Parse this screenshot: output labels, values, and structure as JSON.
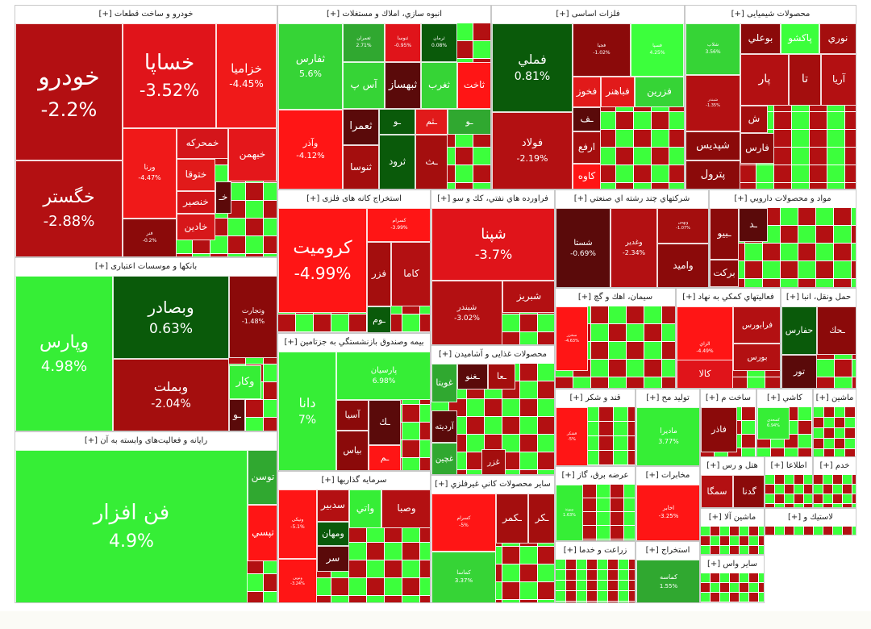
{
  "colors": {
    "strong_up": "#0b8a0b",
    "up": "#36d436",
    "bright_up": "#3cff3c",
    "dark_green": "#0a5a0a",
    "down": "#e00",
    "red": "#ff1515",
    "dark_red": "#a40e0e",
    "deep_red": "#5a0a0a",
    "maroon": "#7e0b0b"
  },
  "chart_data": {
    "type": "treemap",
    "sectors": [
      {
        "id": "auto",
        "title": "خودرو و ساخت قطعات [+]",
        "stocks": [
          {
            "s": "خودرو",
            "p": "-2.2%",
            "c": "#b30f12"
          },
          {
            "s": "خگستر",
            "p": "-2.88%",
            "c": "#b31012"
          },
          {
            "s": "خساپا",
            "p": "-3.52%",
            "c": "#e0141a"
          },
          {
            "s": "خزامیا",
            "p": "-4.45%",
            "c": "#f01919"
          },
          {
            "s": "ورنا",
            "p": "-4.47%",
            "c": "#f01919"
          },
          {
            "s": "خمحرکه",
            "p": "",
            "c": "#d4151a"
          },
          {
            "s": "خبهمن",
            "p": "",
            "c": "#e4171b"
          },
          {
            "s": "ختوقا",
            "p": "",
            "c": "#e11a1a"
          },
          {
            "s": "خنصیر",
            "p": "",
            "c": "#d01317"
          },
          {
            "s": "خادین",
            "p": "",
            "c": "#d7171a"
          },
          {
            "s": "خـ",
            "p": "",
            "c": "#5b0909"
          },
          {
            "s": "فنر",
            "p": "-0.2%",
            "c": "#8b0a0a"
          }
        ]
      },
      {
        "id": "build",
        "title": "انبوه سازي، املاك و مستغلات [+]",
        "stocks": [
          {
            "s": "ثفارس",
            "p": "5.6%",
            "c": "#36d436"
          },
          {
            "s": "ثعمران",
            "p": "2.71%",
            "c": "#30a830"
          },
          {
            "s": "ثنوسا",
            "p": "-0.95%",
            "c": "#e0141a"
          },
          {
            "s": "ثرمان",
            "p": "0.08%",
            "c": "#0a5a0a"
          },
          {
            "s": "وآذر",
            "p": "-4.12%",
            "c": "#ff1515"
          },
          {
            "s": "آس پ",
            "p": "",
            "c": "#36d436"
          },
          {
            "s": "ثبهساز",
            "p": "",
            "c": "#5a0a0a"
          },
          {
            "s": "ثغرب",
            "p": "",
            "c": "#36d436"
          },
          {
            "s": "ثاخت",
            "p": "",
            "c": "#ff1515"
          },
          {
            "s": "ثعمرا",
            "p": "",
            "c": "#5a0a0a"
          },
          {
            "s": "ـو",
            "p": "",
            "c": "#0a5a0a"
          },
          {
            "s": "ـثم",
            "p": "",
            "c": "#e11a1a"
          },
          {
            "s": "ـو",
            "p": "",
            "c": "#30a830"
          },
          {
            "s": "ثنوسا",
            "p": "",
            "c": "#a40e0e"
          },
          {
            "s": "ثرود",
            "p": "",
            "c": "#0a5a0a"
          },
          {
            "s": "ـث",
            "p": "",
            "c": "#a40e0e"
          }
        ]
      },
      {
        "id": "metal",
        "title": "فلزات اساسی [+]",
        "stocks": [
          {
            "s": "فملي",
            "p": "0.81%",
            "c": "#0a5a0a"
          },
          {
            "s": "فولاد",
            "p": "-2.19%",
            "c": "#b31012"
          },
          {
            "s": "فجبا",
            "p": "-1.02%",
            "c": "#8b0a0a"
          },
          {
            "s": "فسپا",
            "p": "4.25%",
            "c": "#3cff3c"
          },
          {
            "s": "فخوز",
            "p": "",
            "c": "#e11a1a"
          },
          {
            "s": "فباهنر",
            "p": "",
            "c": "#e11a1a"
          },
          {
            "s": "فزرين",
            "p": "",
            "c": "#36d436"
          },
          {
            "s": "ـف",
            "p": "",
            "c": "#5a0a0a"
          },
          {
            "s": "ارفع",
            "p": "",
            "c": "#a40e0e"
          },
          {
            "s": "کاوه",
            "p": "",
            "c": "#ff1515"
          }
        ]
      },
      {
        "id": "chem",
        "title": "محصولات شیمیایی [+]",
        "stocks": [
          {
            "s": "شلاب",
            "p": "3.56%",
            "c": "#36d436"
          },
          {
            "s": "بوعلي",
            "p": "",
            "c": "#8b0a0a"
          },
          {
            "s": "پاكشو",
            "p": "",
            "c": "#3cff3c"
          },
          {
            "s": "نوري",
            "p": "",
            "c": "#a40e0e"
          },
          {
            "s": "پار",
            "p": "",
            "c": "#b31012"
          },
          {
            "s": "تا",
            "p": "",
            "c": "#a40e0e"
          },
          {
            "s": "آريا",
            "p": "",
            "c": "#b31012"
          },
          {
            "s": "شبندر",
            "p": "-1.35%",
            "c": "#b31012"
          },
          {
            "s": "ش",
            "p": "",
            "c": "#a40e0e"
          },
          {
            "s": "شپديس",
            "p": "",
            "c": "#8b0a0a"
          },
          {
            "s": "فارس",
            "p": "",
            "c": "#8b0a0a"
          },
          {
            "s": "پترول",
            "p": "",
            "c": "#8b0a0a"
          }
        ]
      },
      {
        "id": "bank",
        "title": "بانکها و موسسات اعتباری [+]",
        "stocks": [
          {
            "s": "وپارس",
            "p": "4.98%",
            "c": "#36ee36"
          },
          {
            "s": "وبصادر",
            "p": "0.63%",
            "c": "#0a5a0a"
          },
          {
            "s": "وبملت",
            "p": "-2.04%",
            "c": "#a40e0e"
          },
          {
            "s": "وتجارت",
            "p": "-1.48%",
            "c": "#8b0a0a"
          },
          {
            "s": "وكار",
            "p": "",
            "c": "#36ee36"
          },
          {
            "s": "ـو",
            "p": "",
            "c": "#5a0a0a"
          }
        ]
      },
      {
        "id": "it",
        "title": "رایانه و فعالیت‌های وابسته به آن [+]",
        "stocks": [
          {
            "s": "فن افزار",
            "p": "4.9%",
            "c": "#36ee36"
          },
          {
            "s": "توسن",
            "p": "",
            "c": "#30a830"
          },
          {
            "s": "تپسي",
            "p": "",
            "c": "#ff1515"
          }
        ]
      },
      {
        "id": "mine",
        "title": "استخراج کانه های فلزی [+]",
        "stocks": [
          {
            "s": "کرومیت",
            "p": "-4.99%",
            "c": "#ff1515"
          },
          {
            "s": "کسرام",
            "p": "-3.99%",
            "c": "#ff1515"
          },
          {
            "s": "فزر",
            "p": "",
            "c": "#a40e0e"
          },
          {
            "s": "کاما",
            "p": "",
            "c": "#b31012"
          },
          {
            "s": "ـوم",
            "p": "",
            "c": "#0a5a0a"
          }
        ]
      },
      {
        "id": "oil",
        "title": "فراورده هاي نفتي، كك و سو [+]",
        "stocks": [
          {
            "s": "شپنا",
            "p": "-3.7%",
            "c": "#e0141a"
          },
          {
            "s": "شبندر",
            "p": "-3.02%",
            "c": "#b31012"
          },
          {
            "s": "شبريز",
            "p": "",
            "c": "#b31012"
          }
        ]
      },
      {
        "id": "multi",
        "title": "شرکتهاي چند رشته اي صنعتي [+]",
        "stocks": [
          {
            "s": "شستا",
            "p": "-0.69%",
            "c": "#5a0a0a"
          },
          {
            "s": "وغدير",
            "p": "-2.34%",
            "c": "#b31012"
          },
          {
            "s": "وبهمن",
            "p": "-1.07%",
            "c": "#a40e0e"
          },
          {
            "s": "واميد",
            "p": "",
            "c": "#8b0a0a"
          }
        ]
      },
      {
        "id": "pharma",
        "title": "مواد و محصولات دارويي [+]",
        "stocks": [
          {
            "s": "ـبيو",
            "p": "",
            "c": "#8b0a0a"
          },
          {
            "s": "ـد",
            "p": "",
            "c": "#5a0a0a"
          },
          {
            "s": "بركت",
            "p": "",
            "c": "#8b0a0a"
          }
        ]
      },
      {
        "id": "fund",
        "title": "بيمه وصندوق بازنشستگي به جزتامين [+]",
        "stocks": [
          {
            "s": "دانا",
            "p": "7%",
            "c": "#36ee36"
          },
          {
            "s": "پارسيان",
            "p": "6.98%",
            "c": "#36ee36"
          },
          {
            "s": "بياس",
            "p": "",
            "c": "#8b0a0a"
          },
          {
            "s": "ـك",
            "p": "",
            "c": "#5a0a0a"
          },
          {
            "s": "ـم",
            "p": "",
            "c": "#ff1515"
          },
          {
            "s": "آسيا",
            "p": "",
            "c": "#8b0a0a"
          }
        ]
      },
      {
        "id": "food",
        "title": "محصولات غذایی و آشامیدن [+]",
        "stocks": [
          {
            "s": "غويتا",
            "p": "",
            "c": "#30a830"
          },
          {
            "s": "آرديته",
            "p": "",
            "c": "#5a0a0a"
          },
          {
            "s": "غچين",
            "p": "",
            "c": "#30a830"
          },
          {
            "s": "ـغنو",
            "p": "",
            "c": "#5a0a0a"
          },
          {
            "s": "ـعا",
            "p": "",
            "c": "#a40e0e"
          },
          {
            "s": "غزر",
            "p": "",
            "c": "#a40e0e"
          }
        ]
      },
      {
        "id": "invest",
        "title": "سرمايه گذاريها [+]",
        "stocks": [
          {
            "s": "وصبا",
            "p": "",
            "c": "#b31012"
          },
          {
            "s": "ومهان",
            "p": "",
            "c": "#0a5a0a"
          },
          {
            "s": "واتي",
            "p": "",
            "c": "#36ee36"
          },
          {
            "s": "سدبير",
            "p": "",
            "c": "#b31012"
          },
          {
            "s": "سر",
            "p": "",
            "c": "#5a0a0a"
          },
          {
            "s": "ونیکی",
            "p": "-5.1%",
            "c": "#ff1515"
          },
          {
            "s": "ونوین",
            "p": "-3.24%",
            "c": "#ff1515"
          }
        ]
      },
      {
        "id": "nonmet",
        "title": "ساير محصولات كاني غيرفلزي [+]",
        "stocks": [
          {
            "s": "كسرام",
            "p": "-5%",
            "c": "#ff1515"
          },
          {
            "s": "كماسا",
            "p": "3.37%",
            "c": "#36d436"
          },
          {
            "s": "ـكمر",
            "p": "",
            "c": "#a40e0e"
          },
          {
            "s": "ـكر",
            "p": "",
            "c": "#a40e0e"
          }
        ]
      },
      {
        "id": "cement",
        "title": "سيمان، اهك و گچ [+]",
        "stocks": [
          {
            "s": "سخزر",
            "p": "-4.63%",
            "c": "#ff1515"
          }
        ]
      },
      {
        "id": "aux",
        "title": "فعاليتهاي كمكي به نهاد [+]",
        "stocks": [
          {
            "s": "الزاي",
            "p": "-4.49%",
            "c": "#ff1515"
          },
          {
            "s": "فرابورس",
            "p": "",
            "c": "#b31012"
          },
          {
            "s": "بورس",
            "p": "",
            "c": "#b31012"
          },
          {
            "s": "كالا",
            "p": "",
            "c": "#e0141a"
          }
        ]
      },
      {
        "id": "trans",
        "title": "حمل ونقل، انبا [+]",
        "stocks": [
          {
            "s": "حفارس",
            "p": "",
            "c": "#0a5a0a"
          },
          {
            "s": "ـحك",
            "p": "",
            "c": "#8b0a0a"
          },
          {
            "s": "تور",
            "p": "",
            "c": "#5a0a0a"
          }
        ]
      },
      {
        "id": "sugar",
        "title": "قند و شكر [+]",
        "stocks": [
          {
            "s": "قشکر",
            "p": "-5%",
            "c": "#ff1515"
          }
        ]
      },
      {
        "id": "medprod",
        "title": "توليد مح [+]",
        "stocks": [
          {
            "s": "ماديرا",
            "p": "3.77%",
            "c": "#36ee36"
          }
        ]
      },
      {
        "id": "constr",
        "title": "ساخت م [+]",
        "stocks": [
          {
            "s": "فاذر",
            "p": "",
            "c": "#8b0a0a"
          }
        ]
      },
      {
        "id": "tile",
        "title": "كاشي [+]",
        "stocks": [
          {
            "s": "کسعدي",
            "p": "6.94%",
            "c": "#36ee36"
          }
        ]
      },
      {
        "id": "mach",
        "title": "ماشين [+]",
        "stocks": []
      },
      {
        "id": "power",
        "title": "عرضه برق، گاز [+]",
        "stocks": [
          {
            "s": "بپيوند",
            "p": "1.63%",
            "c": "#36ee36"
          }
        ]
      },
      {
        "id": "telecom",
        "title": "مخابرات [+]",
        "stocks": [
          {
            "s": "اخابر",
            "p": "-3.25%",
            "c": "#ff1515"
          }
        ]
      },
      {
        "id": "hotel",
        "title": "هتل و رس [+]",
        "stocks": [
          {
            "s": "سمگا",
            "p": "",
            "c": "#b31012"
          },
          {
            "s": "گدنا",
            "p": "",
            "c": "#8b0a0a"
          }
        ]
      },
      {
        "id": "info",
        "title": "اطلاعا [+]",
        "stocks": []
      },
      {
        "id": "service",
        "title": "خدم [+]",
        "stocks": []
      },
      {
        "id": "agri",
        "title": "زراعت و خدما [+]",
        "stocks": []
      },
      {
        "id": "extract",
        "title": "استخراج [+]",
        "stocks": [
          {
            "s": "كماسه",
            "p": "1.55%",
            "c": "#30a830"
          }
        ]
      },
      {
        "id": "mach2",
        "title": "ماشين آلا [+]",
        "stocks": []
      },
      {
        "id": "plastic",
        "title": "لاستيك و [+]",
        "stocks": []
      },
      {
        "id": "other",
        "title": "ساير واس [+]",
        "stocks": []
      }
    ]
  }
}
